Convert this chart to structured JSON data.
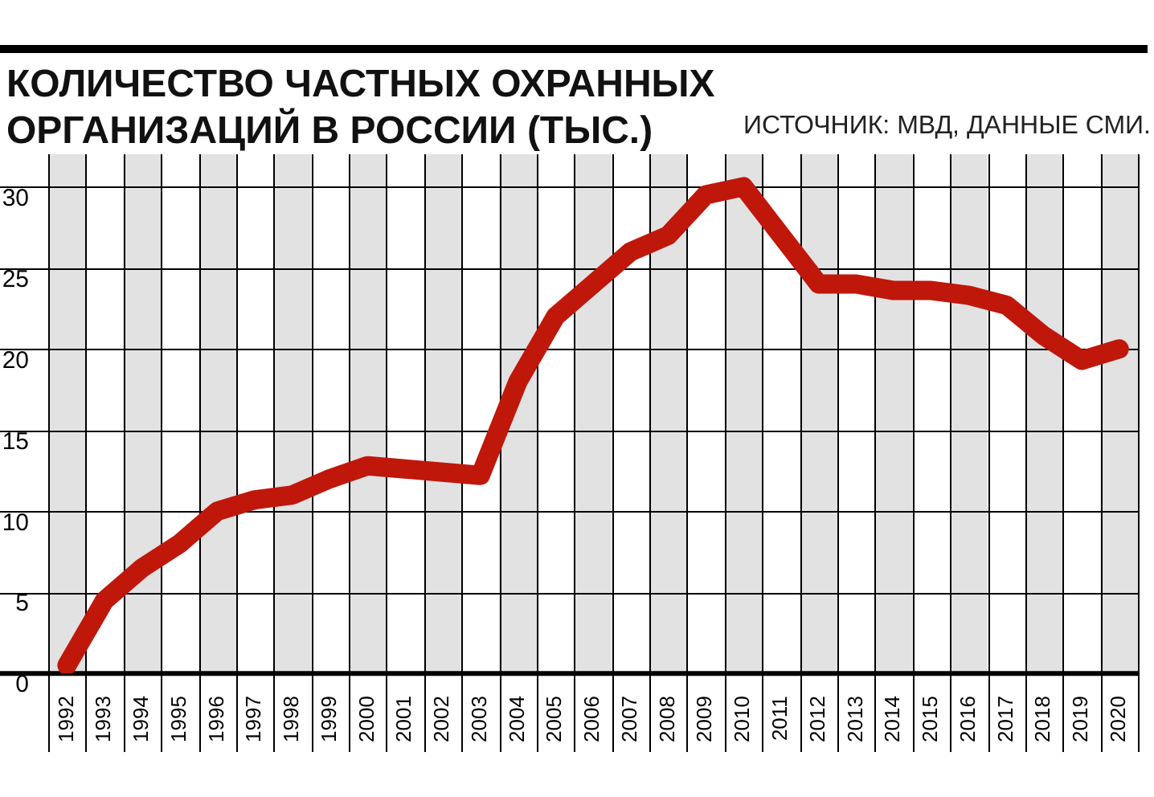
{
  "chart_data": {
    "type": "line",
    "title": "КОЛИЧЕСТВО ЧАСТНЫХ ОХРАННЫХ ОРГАНИЗАЦИЙ В РОССИИ (ТЫС.)",
    "annotations": [
      "ИСТОЧНИК: МВД, ДАННЫЕ СМИ."
    ],
    "categories": [
      "1992",
      "1993",
      "1994",
      "1995",
      "1996",
      "1997",
      "1998",
      "1999",
      "2000",
      "2001",
      "2002",
      "2003",
      "2004",
      "2005",
      "2006",
      "2007",
      "2008",
      "2009",
      "2010",
      "2011",
      "2012",
      "2013",
      "2014",
      "2015",
      "2016",
      "2017",
      "2018",
      "2019",
      "2020"
    ],
    "series": [
      {
        "color": "#c0170b",
        "values": [
          0.5,
          4.5,
          6.5,
          8,
          10,
          10.7,
          11,
          12,
          12.8,
          12.6,
          12.4,
          12.2,
          18,
          22,
          24,
          26,
          27,
          29.5,
          30,
          27,
          24,
          24,
          23.6,
          23.6,
          23.3,
          22.7,
          20.8,
          19.3,
          20
        ]
      }
    ],
    "ylim": [
      0,
      32
    ],
    "yticks": [
      0,
      5,
      10,
      15,
      20,
      25,
      30
    ],
    "grid": true,
    "legend": false,
    "marker": "none",
    "line_style": "solid"
  }
}
